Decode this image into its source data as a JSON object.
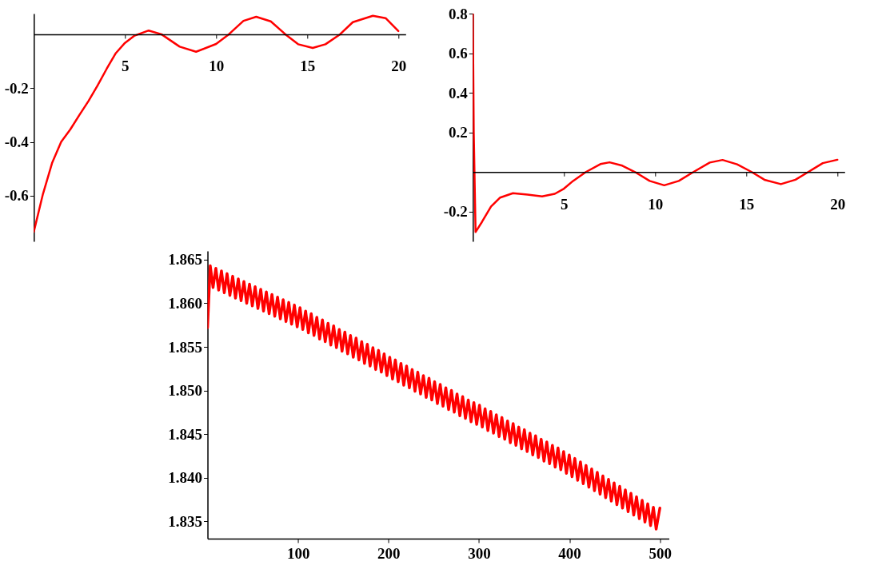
{
  "chart_data": [
    {
      "type": "line",
      "xlim": [
        0,
        20.4
      ],
      "ylim": [
        -0.77,
        0.077
      ],
      "xticks": [
        5,
        10,
        15,
        20
      ],
      "yticks": [
        -0.6,
        -0.4,
        -0.2
      ],
      "x": [
        0,
        0.5,
        1,
        1.5,
        2,
        2.5,
        3,
        3.5,
        4,
        4.5,
        5,
        5.5,
        6.3,
        7,
        8,
        8.9,
        10,
        10.7,
        11.5,
        12.2,
        13,
        13.8,
        14.5,
        15.3,
        16,
        16.8,
        17.5,
        18.6,
        19.3,
        20
      ],
      "series": [
        {
          "color": "#ff0000",
          "values": [
            -0.734,
            -0.594,
            -0.479,
            -0.4,
            -0.354,
            -0.3,
            -0.248,
            -0.19,
            -0.128,
            -0.07,
            -0.032,
            -0.006,
            0.014,
            0,
            -0.046,
            -0.065,
            -0.036,
            0,
            0.05,
            0.065,
            0.048,
            0,
            -0.037,
            -0.051,
            -0.037,
            0,
            0.045,
            0.069,
            0.06,
            0.012
          ]
        }
      ]
    },
    {
      "type": "line",
      "xlim": [
        0,
        20.4
      ],
      "ylim": [
        -0.35,
        0.8
      ],
      "xticks": [
        5,
        10,
        15,
        20
      ],
      "yticks": [
        -0.2,
        0.2,
        0.4,
        0.6,
        0.8
      ],
      "x": [
        0,
        0.05,
        0.15,
        0.5,
        1,
        1.5,
        2.2,
        3,
        3.8,
        4.5,
        5,
        5.5,
        6.2,
        7,
        7.5,
        8.2,
        8.9,
        9.7,
        10.5,
        11.3,
        12.1,
        13,
        13.7,
        14.5,
        15.3,
        16,
        16.9,
        17.7,
        18.4,
        19.2,
        20
      ],
      "series": [
        {
          "color": "#ff0000",
          "values": [
            0.8,
            0.2,
            -0.303,
            -0.252,
            -0.174,
            -0.129,
            -0.107,
            -0.114,
            -0.123,
            -0.11,
            -0.084,
            -0.045,
            0,
            0.04,
            0.049,
            0.032,
            0,
            -0.045,
            -0.067,
            -0.045,
            0,
            0.048,
            0.061,
            0.039,
            0,
            -0.039,
            -0.061,
            -0.039,
            0,
            0.045,
            0.062
          ]
        }
      ]
    },
    {
      "type": "line",
      "xlim": [
        0,
        510
      ],
      "ylim": [
        1.833,
        1.866
      ],
      "xticks": [
        100,
        200,
        300,
        400,
        500
      ],
      "yticks": [
        1.835,
        {
          "value": 1.84,
          "label": "1.840"
        },
        1.845,
        {
          "value": 1.85,
          "label": "1.850"
        },
        1.855,
        {
          "value": 1.86,
          "label": "1.860"
        },
        1.865
      ],
      "x": [
        0,
        3,
        6.1,
        9.2,
        12.3,
        15.4,
        18.5,
        21.6,
        24.7,
        27.8,
        30.9,
        34,
        37.1,
        40.2,
        43.3,
        46.4,
        49.5,
        52.6,
        55.7,
        58.8,
        61.9,
        65,
        68.1,
        71.2,
        74.3,
        77.4,
        80.5,
        83.6,
        86.7,
        89.8,
        92.9,
        96,
        99.1,
        102.2,
        105.3,
        108.4,
        111.5,
        114.6,
        117.7,
        120.8,
        123.9,
        127,
        130.1,
        133.2,
        136.3,
        139.4,
        142.5,
        145.6,
        148.7,
        151.8,
        154.9,
        158,
        161.1,
        164.2,
        167.3,
        170.4,
        173.5,
        176.6,
        179.7,
        182.8,
        185.9,
        189,
        192.1,
        195.2,
        198.3,
        201.4,
        204.5,
        207.6,
        210.7,
        213.8,
        216.9,
        220,
        223.1,
        226.2,
        229.3,
        232.4,
        235.5,
        238.6,
        241.7,
        244.8,
        247.9,
        251,
        254.1,
        257.2,
        260.3,
        263.4,
        266.5,
        269.6,
        272.7,
        275.8,
        278.9,
        282,
        285.1,
        288.2,
        291.3,
        294.4,
        297.5,
        300.6,
        303.7,
        306.8,
        309.9,
        313,
        316.1,
        319.2,
        322.3,
        325.4,
        328.5,
        331.6,
        334.7,
        337.8,
        340.9,
        344,
        347.1,
        350.2,
        353.3,
        356.4,
        359.5,
        362.6,
        365.7,
        368.8,
        371.9,
        375,
        378.1,
        381.2,
        384.3,
        387.4,
        390.5,
        393.6,
        396.7,
        399.8,
        402.9,
        406,
        409.1,
        412.2,
        415.3,
        418.4,
        421.5,
        424.6,
        427.7,
        430.8,
        433.9,
        437,
        440.1,
        443.2,
        446.3,
        449.4,
        452.5,
        455.6,
        458.7,
        461.8,
        464.9,
        468,
        471.1,
        474.2,
        477.3,
        480.4,
        483.5,
        486.6,
        489.7,
        492.8,
        495.9,
        500
      ],
      "series": [
        {
          "color": "#ff0000",
          "values": [
            1.8572,
            1.8643,
            1.8618,
            1.864,
            1.8615,
            1.8637,
            1.8612,
            1.8634,
            1.8609,
            1.8631,
            1.8606,
            1.8628,
            1.8603,
            1.8625,
            1.86,
            1.8622,
            1.8597,
            1.8619,
            1.8594,
            1.8616,
            1.8591,
            1.8613,
            1.8588,
            1.861,
            1.8585,
            1.8607,
            1.8582,
            1.8604,
            1.8579,
            1.8601,
            1.8576,
            1.8598,
            1.8573,
            1.8595,
            1.857,
            1.8591,
            1.8566,
            1.8588,
            1.8563,
            1.8584,
            1.8559,
            1.8581,
            1.8556,
            1.8577,
            1.8552,
            1.8574,
            1.8549,
            1.857,
            1.8545,
            1.8567,
            1.8542,
            1.8563,
            1.8538,
            1.856,
            1.8535,
            1.8556,
            1.8531,
            1.8553,
            1.8528,
            1.8549,
            1.8524,
            1.8546,
            1.8521,
            1.8542,
            1.8517,
            1.8538,
            1.8513,
            1.8535,
            1.851,
            1.8531,
            1.8506,
            1.8528,
            1.8503,
            1.8524,
            1.8499,
            1.8521,
            1.8496,
            1.8517,
            1.8492,
            1.8514,
            1.8489,
            1.851,
            1.8485,
            1.8507,
            1.8482,
            1.8503,
            1.8478,
            1.85,
            1.8475,
            1.8496,
            1.8471,
            1.8493,
            1.8468,
            1.8489,
            1.8464,
            1.8486,
            1.8461,
            1.8483,
            1.8458,
            1.8479,
            1.8454,
            1.8476,
            1.8451,
            1.8472,
            1.8447,
            1.8469,
            1.8444,
            1.8465,
            1.844,
            1.8462,
            1.8437,
            1.8458,
            1.8433,
            1.8455,
            1.843,
            1.8451,
            1.8426,
            1.8448,
            1.8423,
            1.8444,
            1.8419,
            1.8441,
            1.8416,
            1.8437,
            1.8412,
            1.8434,
            1.8409,
            1.843,
            1.8405,
            1.8426,
            1.8401,
            1.8422,
            1.8397,
            1.8418,
            1.8393,
            1.8414,
            1.8389,
            1.841,
            1.8385,
            1.8406,
            1.8381,
            1.8402,
            1.8377,
            1.8398,
            1.8373,
            1.8394,
            1.8369,
            1.839,
            1.8365,
            1.8386,
            1.8361,
            1.8382,
            1.8357,
            1.8378,
            1.8353,
            1.8374,
            1.8349,
            1.837,
            1.8345,
            1.8366,
            1.8341,
            1.8365
          ]
        }
      ]
    }
  ]
}
